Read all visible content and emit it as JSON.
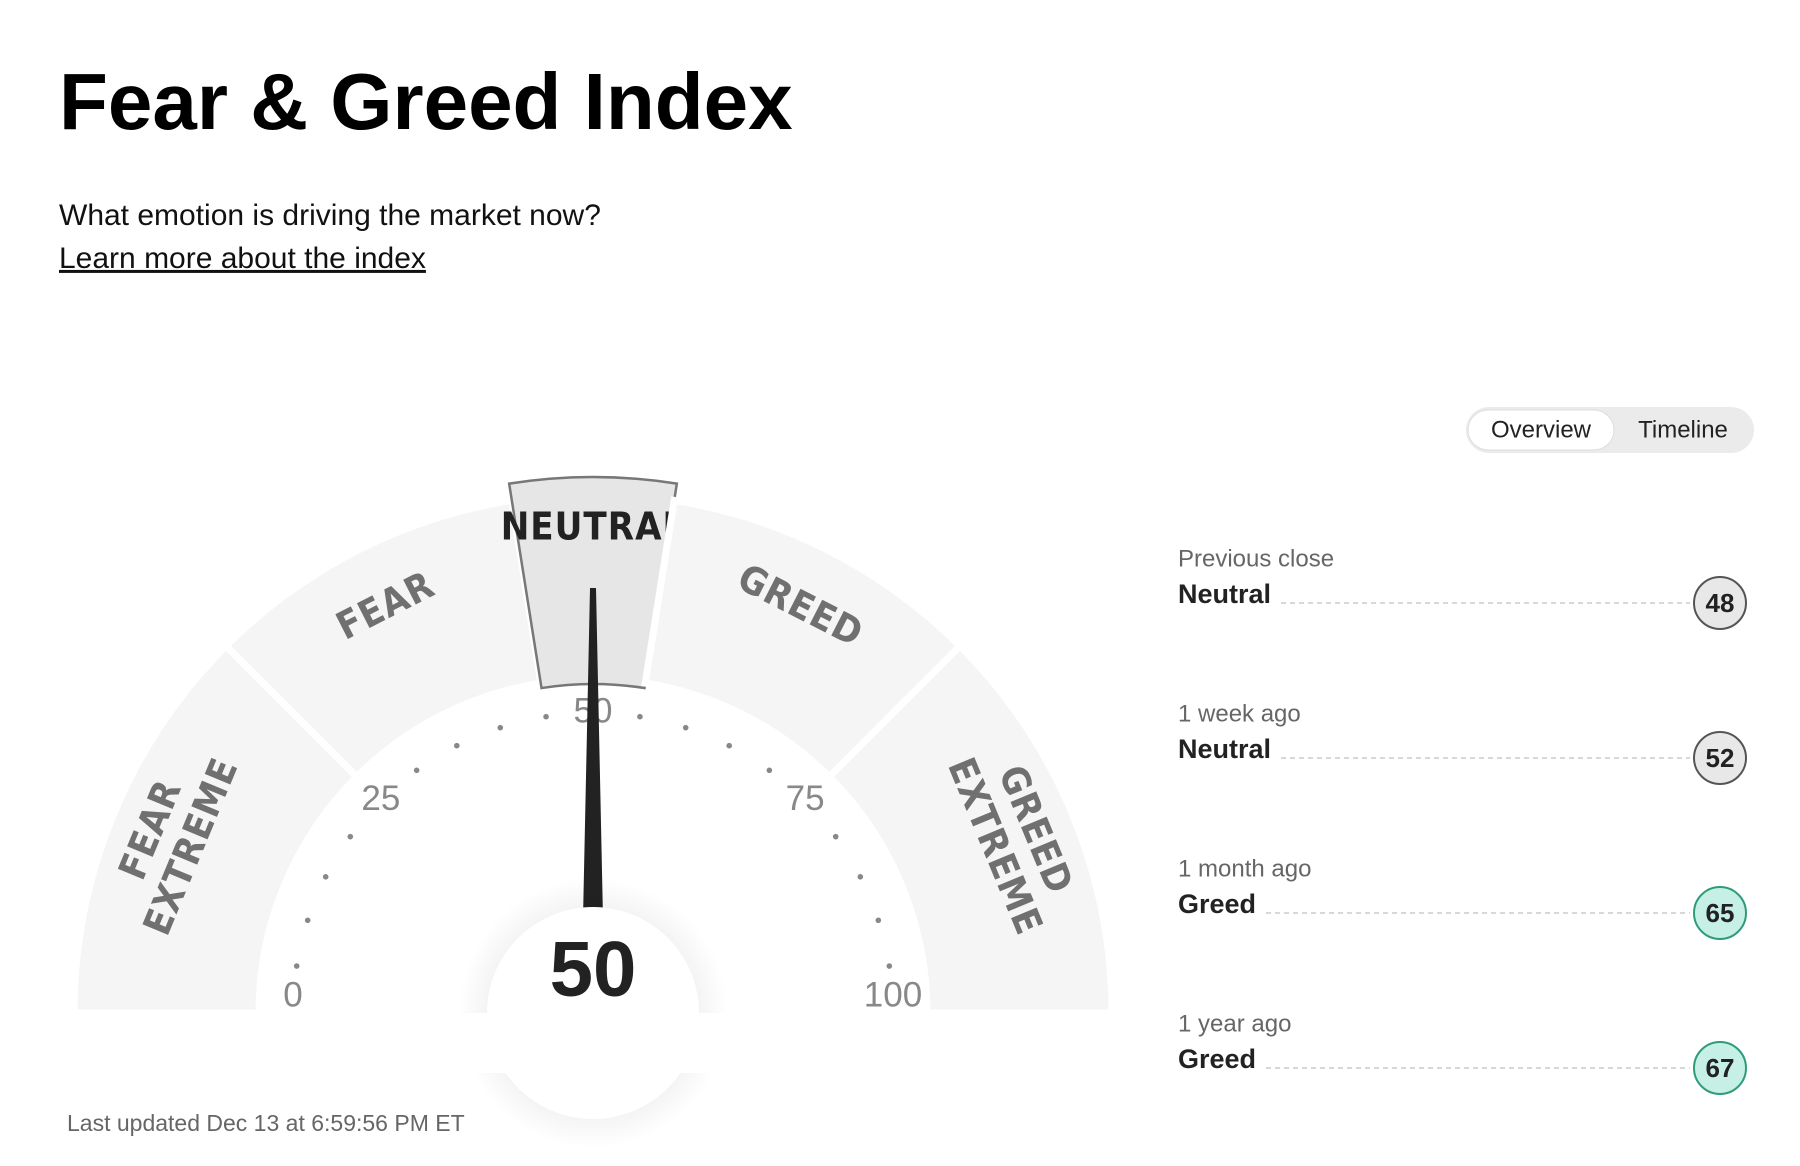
{
  "header": {
    "title": "Fear & Greed Index",
    "subtitle": "What emotion is driving the market now?",
    "link": "Learn more about the index"
  },
  "tabs": {
    "items": [
      "Overview",
      "Timeline"
    ],
    "active": 0
  },
  "gauge": {
    "value": 50,
    "range": [
      0,
      100
    ],
    "ticks": [
      0,
      25,
      50,
      75,
      100
    ],
    "segments": [
      [
        "EXTREME",
        "FEAR"
      ],
      [
        "FEAR"
      ],
      [
        "NEUTRAL"
      ],
      [
        "GREED"
      ],
      [
        "EXTREME",
        "GREED"
      ]
    ],
    "active_segment": 2
  },
  "history": [
    {
      "label": "Previous close",
      "rating": "Neutral",
      "value": 48,
      "color": "#e8e8e8",
      "border": "#555555"
    },
    {
      "label": "1 week ago",
      "rating": "Neutral",
      "value": 52,
      "color": "#e8e8e8",
      "border": "#555555"
    },
    {
      "label": "1 month ago",
      "rating": "Greed",
      "value": 65,
      "color": "#c6efe6",
      "border": "#2e9c78"
    },
    {
      "label": "1 year ago",
      "rating": "Greed",
      "value": 67,
      "color": "#c6efe6",
      "border": "#2e9c78"
    }
  ],
  "footer": {
    "updated": "Last updated Dec 13 at 6:59:56 PM ET"
  }
}
